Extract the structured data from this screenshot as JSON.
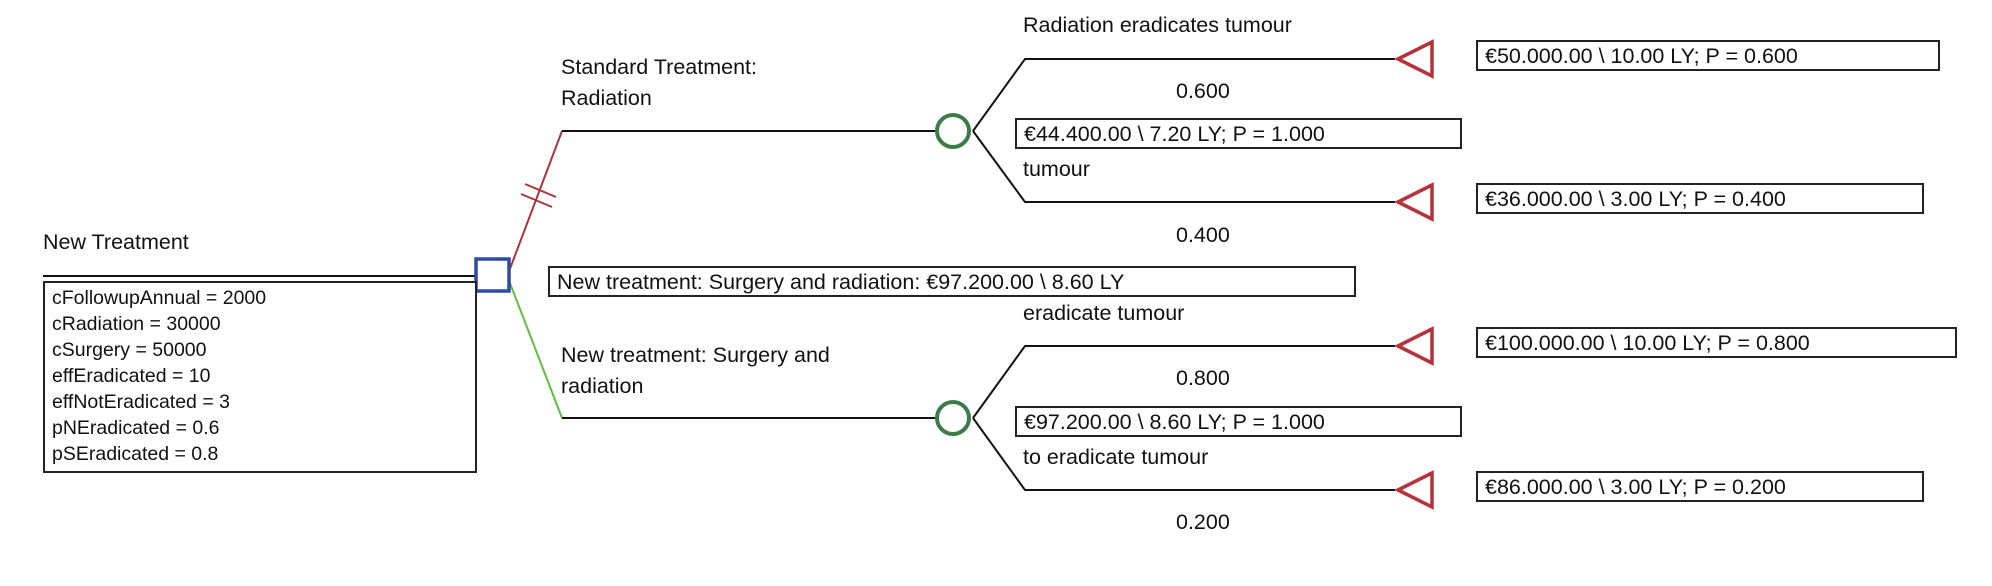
{
  "colors": {
    "decision_node": "#2f4aa5",
    "chance_node": "#3d7a4a",
    "terminal_node": "#b5323a",
    "optimal_branch": "#5cbf3c",
    "pruned_branch": "#a8353a",
    "line": "#111111"
  },
  "root": {
    "label": "New Treatment",
    "variables": [
      "cFollowupAnnual = 2000",
      "cRadiation = 30000",
      "cSurgery = 50000",
      "effEradicated = 10",
      "effNotEradicated = 3",
      "pNEradicated = 0.6",
      "pSEradicated = 0.8"
    ]
  },
  "decision_result": "New treatment: Surgery and radiation: €97.200.00 \\ 8.60 LY",
  "standard": {
    "label_line1": "Standard Treatment:",
    "label_line2": "Radiation",
    "summary": "€44.400.00 \\ 7.20 LY; P = 1.000",
    "top": {
      "label": "Radiation eradicates tumour",
      "probability": "0.600",
      "result": "€50.000.00 \\ 10.00 LY; P = 0.600"
    },
    "bottom": {
      "label": "tumour",
      "probability": "0.400",
      "result": "€36.000.00 \\ 3.00 LY; P = 0.400"
    }
  },
  "surgery": {
    "label_line1": "New treatment: Surgery and",
    "label_line2": "radiation",
    "summary": "€97.200.00 \\ 8.60 LY; P = 1.000",
    "top": {
      "label": "eradicate tumour",
      "probability": "0.800",
      "result": "€100.000.00 \\ 10.00 LY; P = 0.800"
    },
    "bottom": {
      "label": "to eradicate tumour",
      "probability": "0.200",
      "result": "€86.000.00 \\ 3.00 LY; P = 0.200"
    }
  }
}
